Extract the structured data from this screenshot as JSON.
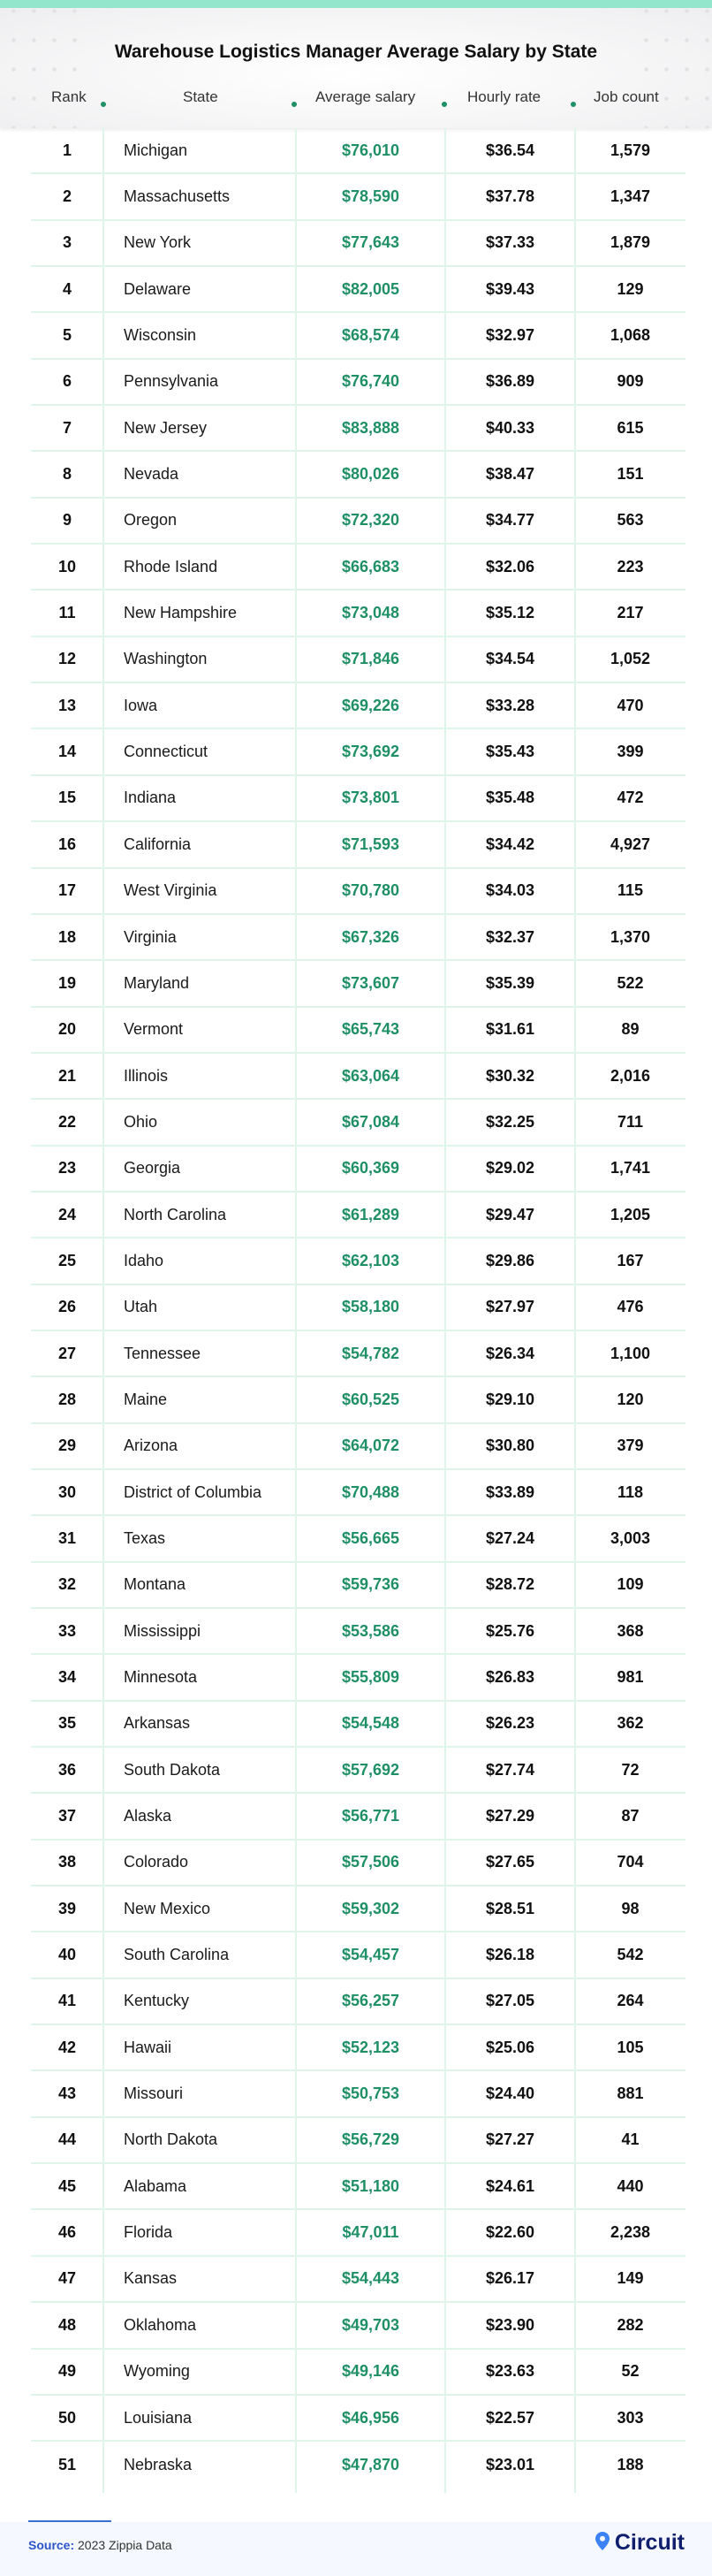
{
  "title": "Warehouse Logistics Manager Average Salary by State",
  "columns": [
    "Rank",
    "State",
    "Average salary",
    "Hourly rate",
    "Job count"
  ],
  "colors": {
    "accent_green": "#1f8f66",
    "top_band": "#93e6cb",
    "grid": "#dff5ea",
    "brand_navy": "#0f1f6e",
    "brand_blue": "#3b82f6"
  },
  "rows": [
    {
      "rank": "1",
      "state": "Michigan",
      "salary": "$76,010",
      "hourly": "$36.54",
      "jobs": "1,579"
    },
    {
      "rank": "2",
      "state": "Massachusetts",
      "salary": "$78,590",
      "hourly": "$37.78",
      "jobs": "1,347"
    },
    {
      "rank": "3",
      "state": "New York",
      "salary": "$77,643",
      "hourly": "$37.33",
      "jobs": "1,879"
    },
    {
      "rank": "4",
      "state": "Delaware",
      "salary": "$82,005",
      "hourly": "$39.43",
      "jobs": "129"
    },
    {
      "rank": "5",
      "state": "Wisconsin",
      "salary": "$68,574",
      "hourly": "$32.97",
      "jobs": "1,068"
    },
    {
      "rank": "6",
      "state": "Pennsylvania",
      "salary": "$76,740",
      "hourly": "$36.89",
      "jobs": "909"
    },
    {
      "rank": "7",
      "state": "New Jersey",
      "salary": "$83,888",
      "hourly": "$40.33",
      "jobs": "615"
    },
    {
      "rank": "8",
      "state": "Nevada",
      "salary": "$80,026",
      "hourly": "$38.47",
      "jobs": "151"
    },
    {
      "rank": "9",
      "state": "Oregon",
      "salary": "$72,320",
      "hourly": "$34.77",
      "jobs": "563"
    },
    {
      "rank": "10",
      "state": "Rhode Island",
      "salary": "$66,683",
      "hourly": "$32.06",
      "jobs": "223"
    },
    {
      "rank": "11",
      "state": "New Hampshire",
      "salary": "$73,048",
      "hourly": "$35.12",
      "jobs": "217"
    },
    {
      "rank": "12",
      "state": "Washington",
      "salary": "$71,846",
      "hourly": "$34.54",
      "jobs": "1,052"
    },
    {
      "rank": "13",
      "state": "Iowa",
      "salary": "$69,226",
      "hourly": "$33.28",
      "jobs": "470"
    },
    {
      "rank": "14",
      "state": "Connecticut",
      "salary": "$73,692",
      "hourly": "$35.43",
      "jobs": "399"
    },
    {
      "rank": "15",
      "state": "Indiana",
      "salary": "$73,801",
      "hourly": "$35.48",
      "jobs": "472"
    },
    {
      "rank": "16",
      "state": "California",
      "salary": "$71,593",
      "hourly": "$34.42",
      "jobs": "4,927"
    },
    {
      "rank": "17",
      "state": "West Virginia",
      "salary": "$70,780",
      "hourly": "$34.03",
      "jobs": "115"
    },
    {
      "rank": "18",
      "state": "Virginia",
      "salary": "$67,326",
      "hourly": "$32.37",
      "jobs": "1,370"
    },
    {
      "rank": "19",
      "state": "Maryland",
      "salary": "$73,607",
      "hourly": "$35.39",
      "jobs": "522"
    },
    {
      "rank": "20",
      "state": "Vermont",
      "salary": "$65,743",
      "hourly": "$31.61",
      "jobs": "89"
    },
    {
      "rank": "21",
      "state": "Illinois",
      "salary": "$63,064",
      "hourly": "$30.32",
      "jobs": "2,016"
    },
    {
      "rank": "22",
      "state": "Ohio",
      "salary": "$67,084",
      "hourly": "$32.25",
      "jobs": "711"
    },
    {
      "rank": "23",
      "state": "Georgia",
      "salary": "$60,369",
      "hourly": "$29.02",
      "jobs": "1,741"
    },
    {
      "rank": "24",
      "state": "North Carolina",
      "salary": "$61,289",
      "hourly": "$29.47",
      "jobs": "1,205"
    },
    {
      "rank": "25",
      "state": "Idaho",
      "salary": "$62,103",
      "hourly": "$29.86",
      "jobs": "167"
    },
    {
      "rank": "26",
      "state": "Utah",
      "salary": "$58,180",
      "hourly": "$27.97",
      "jobs": "476"
    },
    {
      "rank": "27",
      "state": "Tennessee",
      "salary": "$54,782",
      "hourly": "$26.34",
      "jobs": "1,100"
    },
    {
      "rank": "28",
      "state": "Maine",
      "salary": "$60,525",
      "hourly": "$29.10",
      "jobs": "120"
    },
    {
      "rank": "29",
      "state": "Arizona",
      "salary": "$64,072",
      "hourly": "$30.80",
      "jobs": "379"
    },
    {
      "rank": "30",
      "state": "District of Columbia",
      "salary": "$70,488",
      "hourly": "$33.89",
      "jobs": "118"
    },
    {
      "rank": "31",
      "state": "Texas",
      "salary": "$56,665",
      "hourly": "$27.24",
      "jobs": "3,003"
    },
    {
      "rank": "32",
      "state": "Montana",
      "salary": "$59,736",
      "hourly": "$28.72",
      "jobs": "109"
    },
    {
      "rank": "33",
      "state": "Mississippi",
      "salary": "$53,586",
      "hourly": "$25.76",
      "jobs": "368"
    },
    {
      "rank": "34",
      "state": "Minnesota",
      "salary": "$55,809",
      "hourly": "$26.83",
      "jobs": "981"
    },
    {
      "rank": "35",
      "state": "Arkansas",
      "salary": "$54,548",
      "hourly": "$26.23",
      "jobs": "362"
    },
    {
      "rank": "36",
      "state": "South Dakota",
      "salary": "$57,692",
      "hourly": "$27.74",
      "jobs": "72"
    },
    {
      "rank": "37",
      "state": "Alaska",
      "salary": "$56,771",
      "hourly": "$27.29",
      "jobs": "87"
    },
    {
      "rank": "38",
      "state": "Colorado",
      "salary": "$57,506",
      "hourly": "$27.65",
      "jobs": "704"
    },
    {
      "rank": "39",
      "state": "New Mexico",
      "salary": "$59,302",
      "hourly": "$28.51",
      "jobs": "98"
    },
    {
      "rank": "40",
      "state": "South Carolina",
      "salary": "$54,457",
      "hourly": "$26.18",
      "jobs": "542"
    },
    {
      "rank": "41",
      "state": "Kentucky",
      "salary": "$56,257",
      "hourly": "$27.05",
      "jobs": "264"
    },
    {
      "rank": "42",
      "state": "Hawaii",
      "salary": "$52,123",
      "hourly": "$25.06",
      "jobs": "105"
    },
    {
      "rank": "43",
      "state": "Missouri",
      "salary": "$50,753",
      "hourly": "$24.40",
      "jobs": "881"
    },
    {
      "rank": "44",
      "state": "North Dakota",
      "salary": "$56,729",
      "hourly": "$27.27",
      "jobs": "41"
    },
    {
      "rank": "45",
      "state": "Alabama",
      "salary": "$51,180",
      "hourly": "$24.61",
      "jobs": "440"
    },
    {
      "rank": "46",
      "state": "Florida",
      "salary": "$47,011",
      "hourly": "$22.60",
      "jobs": "2,238"
    },
    {
      "rank": "47",
      "state": "Kansas",
      "salary": "$54,443",
      "hourly": "$26.17",
      "jobs": "149"
    },
    {
      "rank": "48",
      "state": "Oklahoma",
      "salary": "$49,703",
      "hourly": "$23.90",
      "jobs": "282"
    },
    {
      "rank": "49",
      "state": "Wyoming",
      "salary": "$49,146",
      "hourly": "$23.63",
      "jobs": "52"
    },
    {
      "rank": "50",
      "state": "Louisiana",
      "salary": "$46,956",
      "hourly": "$22.57",
      "jobs": "303"
    },
    {
      "rank": "51",
      "state": "Nebraska",
      "salary": "$47,870",
      "hourly": "$23.01",
      "jobs": "188"
    }
  ],
  "footer": {
    "source_label": "Source:",
    "source_text": " 2023 Zippia Data",
    "brand_name": "Circuit",
    "brand_icon": "location-pin-icon"
  }
}
